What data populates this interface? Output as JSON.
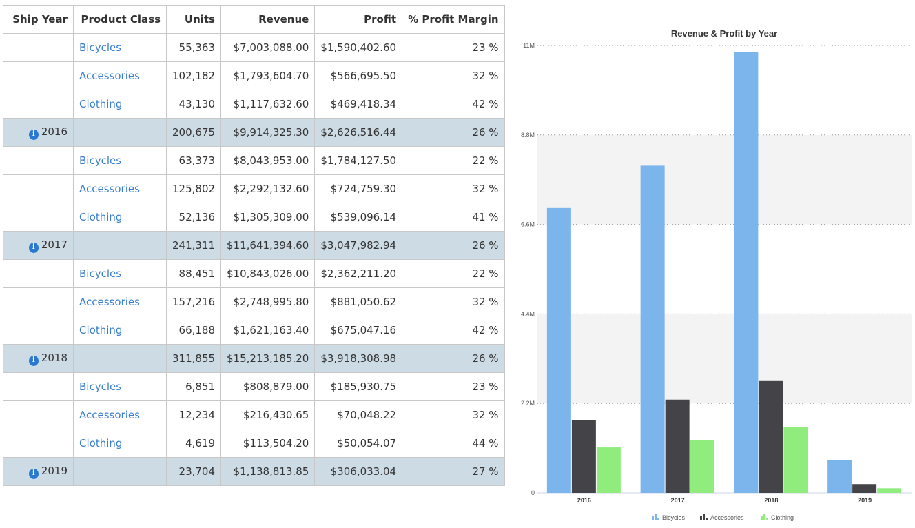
{
  "grid": {
    "headers": {
      "ship_year": "Ship Year",
      "product_class": "Product Class",
      "units": "Units",
      "revenue": "Revenue",
      "profit": "Profit",
      "margin": "% Profit Margin"
    },
    "rows": [
      {
        "type": "detail",
        "year": "",
        "cls": "Bicycles",
        "units": "55,363",
        "revenue": "$7,003,088.00",
        "profit": "$1,590,402.60",
        "margin": "23 %"
      },
      {
        "type": "detail",
        "year": "",
        "cls": "Accessories",
        "units": "102,182",
        "revenue": "$1,793,604.70",
        "profit": "$566,695.50",
        "margin": "32 %"
      },
      {
        "type": "detail",
        "year": "",
        "cls": "Clothing",
        "units": "43,130",
        "revenue": "$1,117,632.60",
        "profit": "$469,418.34",
        "margin": "42 %"
      },
      {
        "type": "group",
        "year": "2016",
        "cls": "",
        "units": "200,675",
        "revenue": "$9,914,325.30",
        "profit": "$2,626,516.44",
        "margin": "26 %"
      },
      {
        "type": "detail",
        "year": "",
        "cls": "Bicycles",
        "units": "63,373",
        "revenue": "$8,043,953.00",
        "profit": "$1,784,127.50",
        "margin": "22 %"
      },
      {
        "type": "detail",
        "year": "",
        "cls": "Accessories",
        "units": "125,802",
        "revenue": "$2,292,132.60",
        "profit": "$724,759.30",
        "margin": "32 %"
      },
      {
        "type": "detail",
        "year": "",
        "cls": "Clothing",
        "units": "52,136",
        "revenue": "$1,305,309.00",
        "profit": "$539,096.14",
        "margin": "41 %"
      },
      {
        "type": "group",
        "year": "2017",
        "cls": "",
        "units": "241,311",
        "revenue": "$11,641,394.60",
        "profit": "$3,047,982.94",
        "margin": "26 %"
      },
      {
        "type": "detail",
        "year": "",
        "cls": "Bicycles",
        "units": "88,451",
        "revenue": "$10,843,026.00",
        "profit": "$2,362,211.20",
        "margin": "22 %"
      },
      {
        "type": "detail",
        "year": "",
        "cls": "Accessories",
        "units": "157,216",
        "revenue": "$2,748,995.80",
        "profit": "$881,050.62",
        "margin": "32 %"
      },
      {
        "type": "detail",
        "year": "",
        "cls": "Clothing",
        "units": "66,188",
        "revenue": "$1,621,163.40",
        "profit": "$675,047.16",
        "margin": "42 %"
      },
      {
        "type": "group",
        "year": "2018",
        "cls": "",
        "units": "311,855",
        "revenue": "$15,213,185.20",
        "profit": "$3,918,308.98",
        "margin": "26 %"
      },
      {
        "type": "detail",
        "year": "",
        "cls": "Bicycles",
        "units": "6,851",
        "revenue": "$808,879.00",
        "profit": "$185,930.75",
        "margin": "23 %"
      },
      {
        "type": "detail",
        "year": "",
        "cls": "Accessories",
        "units": "12,234",
        "revenue": "$216,430.65",
        "profit": "$70,048.22",
        "margin": "32 %"
      },
      {
        "type": "detail",
        "year": "",
        "cls": "Clothing",
        "units": "4,619",
        "revenue": "$113,504.20",
        "profit": "$50,054.07",
        "margin": "44 %"
      },
      {
        "type": "group",
        "year": "2019",
        "cls": "",
        "units": "23,704",
        "revenue": "$1,138,813.85",
        "profit": "$306,033.04",
        "margin": "27 %"
      }
    ]
  },
  "chart_data": {
    "type": "bar",
    "title": "Revenue & Profit by Year",
    "categories": [
      "2016",
      "2017",
      "2018",
      "2019"
    ],
    "series": [
      {
        "name": "Bicycles",
        "color": "#7cb5ec",
        "values": [
          7003088.0,
          8043953.0,
          10843026.0,
          808879.0
        ]
      },
      {
        "name": "Accessories",
        "color": "#434348",
        "values": [
          1793604.7,
          2292132.6,
          2748995.8,
          216430.65
        ]
      },
      {
        "name": "Clothing",
        "color": "#90ed7d",
        "values": [
          1117632.6,
          1305309.0,
          1621163.4,
          113504.2
        ]
      }
    ],
    "ylim": [
      0,
      11000000
    ],
    "yticks": [
      {
        "value": 0,
        "label": "0"
      },
      {
        "value": 2200000,
        "label": "2.2M"
      },
      {
        "value": 4400000,
        "label": "4.4M"
      },
      {
        "value": 6600000,
        "label": "6.6M"
      },
      {
        "value": 8800000,
        "label": "8.8M"
      },
      {
        "value": 11000000,
        "label": "11M"
      }
    ],
    "grid": true,
    "legend": "bottom"
  }
}
